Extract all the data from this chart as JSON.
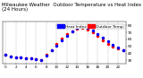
{
  "title": "Milwaukee Weather  Outdoor Temperature vs Heat Index\n(24 Hours)",
  "legend_labels": [
    "Outdoor Temp",
    "Heat Index"
  ],
  "legend_colors": [
    "#ff0000",
    "#0000ff"
  ],
  "x_hours": [
    0,
    1,
    2,
    3,
    4,
    5,
    6,
    7,
    8,
    9,
    10,
    11,
    12,
    13,
    14,
    15,
    16,
    17,
    18,
    19,
    20,
    21,
    22,
    23
  ],
  "temp_values": [
    38,
    36,
    35,
    34,
    33,
    33,
    32,
    31,
    38,
    45,
    53,
    61,
    67,
    72,
    75,
    76,
    74,
    70,
    65,
    59,
    54,
    50,
    47,
    44
  ],
  "heat_values": [
    38,
    36,
    35,
    34,
    33,
    33,
    32,
    31,
    37,
    44,
    51,
    59,
    65,
    71,
    76,
    78,
    77,
    73,
    68,
    62,
    57,
    52,
    48,
    45
  ],
  "ylim": [
    25,
    85
  ],
  "yticks": [
    30,
    40,
    50,
    60,
    70,
    80
  ],
  "background_color": "#ffffff",
  "grid_color": "#aaaaaa",
  "title_fontsize": 4.0,
  "tick_fontsize": 3.0,
  "marker_size": 1.5,
  "legend_fontsize": 3.2
}
